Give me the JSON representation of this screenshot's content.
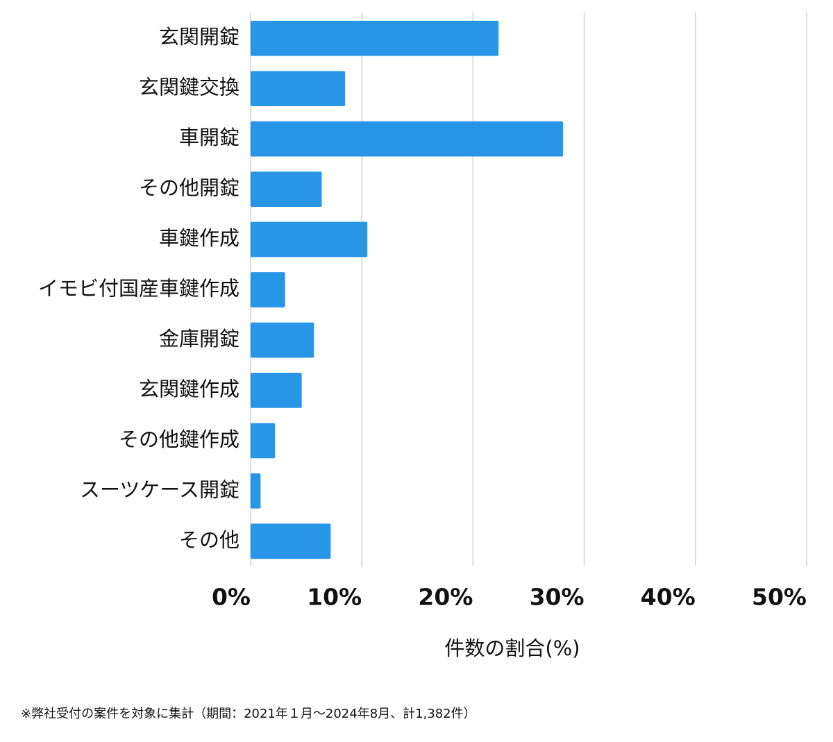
{
  "chart_data": {
    "type": "bar",
    "orientation": "horizontal",
    "categories": [
      "玄関開錠",
      "玄関鍵交換",
      "車開錠",
      "その他開錠",
      "車鍵作成",
      "イモビ付国産車鍵作成",
      "金庫開錠",
      "玄関鍵作成",
      "その他鍵作成",
      "スーツケース開錠",
      "その他"
    ],
    "values": [
      22.3,
      8.5,
      28.1,
      6.4,
      10.5,
      3.1,
      5.7,
      4.6,
      2.2,
      0.9,
      7.2
    ],
    "color": "#2896e6",
    "xlim": [
      0,
      50
    ],
    "xticks": [
      {
        "value": 0,
        "label": "0%"
      },
      {
        "value": 10,
        "label": "10%"
      },
      {
        "value": 20,
        "label": "20%"
      },
      {
        "value": 30,
        "label": "30%"
      },
      {
        "value": 40,
        "label": "40%"
      },
      {
        "value": 50,
        "label": "50%"
      }
    ],
    "xlabel": "件数の割合(%)",
    "grid": true,
    "footnote": "※弊社受付の案件を対象に集計（期間：2021年１月〜2024年8月、計1,382件）"
  }
}
